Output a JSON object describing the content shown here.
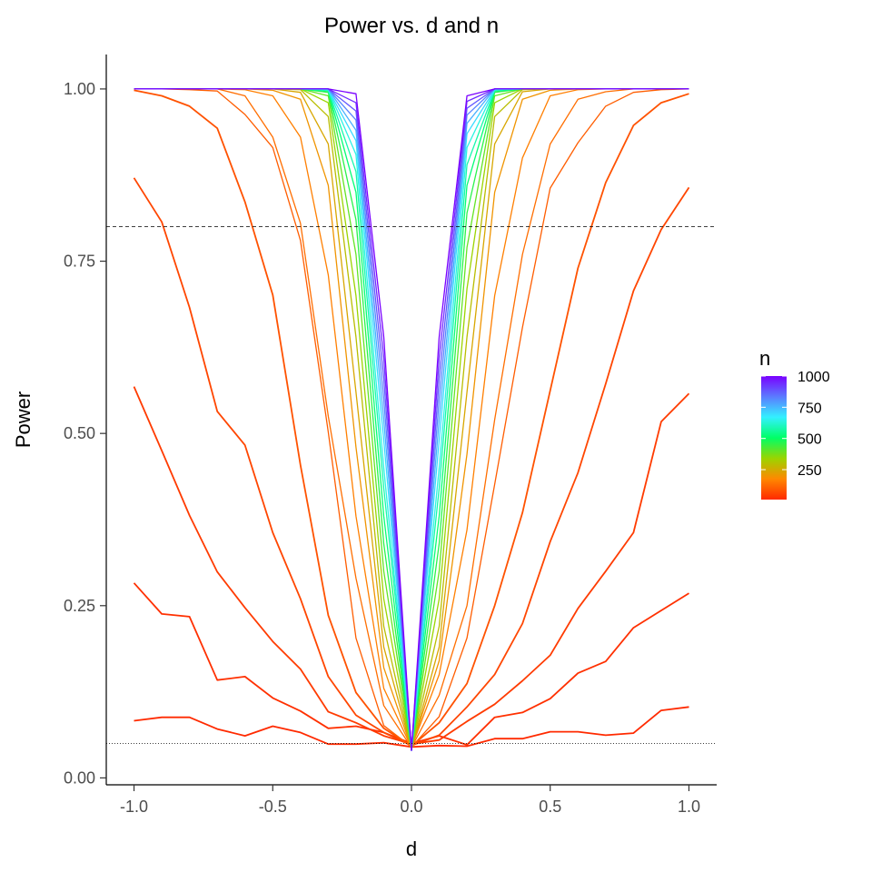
{
  "chart_data": {
    "type": "line",
    "title": "Power vs. d and n",
    "xlabel": "d",
    "ylabel": "Power",
    "xlim": [
      -1.1,
      1.1
    ],
    "ylim": [
      -0.01,
      1.05
    ],
    "x_ticks": [
      -1.0,
      -0.5,
      0.0,
      0.5,
      1.0
    ],
    "x_tick_labels": [
      "-1.0",
      "-0.5",
      "0.0",
      "0.5",
      "1.0"
    ],
    "y_ticks": [
      0.0,
      0.25,
      0.5,
      0.75,
      1.0
    ],
    "y_tick_labels": [
      "0.00",
      "0.25",
      "0.50",
      "0.75",
      "1.00"
    ],
    "grid": false,
    "reference_lines": [
      {
        "y": 0.8,
        "style": "dashed"
      },
      {
        "y": 0.05,
        "style": "dotted"
      }
    ],
    "legend": {
      "title": "n",
      "position": "right",
      "type": "colorbar",
      "range": [
        10,
        1000
      ],
      "tick_values": [
        250,
        500,
        750,
        1000
      ],
      "tick_labels": [
        "250",
        "500",
        "750",
        "1000"
      ],
      "colors": [
        "#ff2a00",
        "#ff8800",
        "#9bd400",
        "#00ff66",
        "#33f0ff",
        "#5b7bff",
        "#7a00ff"
      ]
    },
    "x": [
      -1.0,
      -0.9,
      -0.8,
      -0.7,
      -0.6,
      -0.5,
      -0.4,
      -0.3,
      -0.2,
      -0.1,
      0.0,
      0.1,
      0.2,
      0.3,
      0.4,
      0.5,
      0.6,
      0.7,
      0.8,
      0.9,
      1.0
    ],
    "series": [
      {
        "n": 10,
        "values": [
          0.083,
          0.088,
          0.088,
          0.071,
          0.061,
          0.075,
          0.066,
          0.049,
          0.049,
          0.051,
          0.045,
          0.047,
          0.046,
          0.057,
          0.057,
          0.067,
          0.067,
          0.062,
          0.065,
          0.098,
          0.103
        ]
      },
      {
        "n": 20,
        "values": [
          0.283,
          0.238,
          0.234,
          0.142,
          0.147,
          0.116,
          0.097,
          0.072,
          0.075,
          0.066,
          0.05,
          0.061,
          0.048,
          0.088,
          0.095,
          0.115,
          0.152,
          0.169,
          0.218,
          0.243,
          0.268
        ]
      },
      {
        "n": 40,
        "values": [
          0.568,
          0.475,
          0.381,
          0.299,
          0.247,
          0.198,
          0.158,
          0.096,
          0.08,
          0.061,
          0.049,
          0.055,
          0.082,
          0.107,
          0.141,
          0.178,
          0.246,
          0.3,
          0.356,
          0.517,
          0.558
        ]
      },
      {
        "n": 60,
        "values": [
          0.871,
          0.807,
          0.683,
          0.532,
          0.483,
          0.356,
          0.26,
          0.147,
          0.091,
          0.066,
          0.047,
          0.062,
          0.103,
          0.15,
          0.224,
          0.343,
          0.443,
          0.572,
          0.707,
          0.796,
          0.857
        ]
      },
      {
        "n": 80,
        "values": [
          0.998,
          0.99,
          0.975,
          0.943,
          0.836,
          0.701,
          0.454,
          0.236,
          0.124,
          0.072,
          0.046,
          0.08,
          0.137,
          0.25,
          0.385,
          0.562,
          0.74,
          0.864,
          0.947,
          0.98,
          0.993
        ]
      },
      {
        "n": 100,
        "values": [
          1.0,
          1.0,
          0.999,
          0.997,
          0.963,
          0.915,
          0.78,
          0.502,
          0.203,
          0.076,
          0.045,
          0.089,
          0.203,
          0.426,
          0.654,
          0.856,
          0.922,
          0.975,
          0.995,
          0.999,
          1.0
        ]
      },
      {
        "n": 130,
        "values": [
          1.0,
          1.0,
          1.0,
          1.0,
          0.99,
          0.93,
          0.805,
          0.525,
          0.29,
          0.105,
          0.044,
          0.12,
          0.25,
          0.52,
          0.76,
          0.92,
          0.985,
          0.996,
          1.0,
          1.0,
          1.0
        ]
      },
      {
        "n": 160,
        "values": [
          1.0,
          1.0,
          1.0,
          1.0,
          0.999,
          0.99,
          0.93,
          0.73,
          0.38,
          0.13,
          0.044,
          0.15,
          0.36,
          0.7,
          0.9,
          0.99,
          0.999,
          1.0,
          1.0,
          1.0,
          1.0
        ]
      },
      {
        "n": 200,
        "values": [
          1.0,
          1.0,
          1.0,
          1.0,
          1.0,
          0.998,
          0.985,
          0.86,
          0.48,
          0.16,
          0.043,
          0.17,
          0.47,
          0.85,
          0.985,
          0.998,
          1.0,
          1.0,
          1.0,
          1.0,
          1.0
        ]
      },
      {
        "n": 240,
        "values": [
          1.0,
          1.0,
          1.0,
          1.0,
          1.0,
          1.0,
          0.995,
          0.92,
          0.56,
          0.19,
          0.042,
          0.19,
          0.56,
          0.92,
          0.996,
          1.0,
          1.0,
          1.0,
          1.0,
          1.0,
          1.0
        ]
      },
      {
        "n": 290,
        "values": [
          1.0,
          1.0,
          1.0,
          1.0,
          1.0,
          1.0,
          0.999,
          0.96,
          0.64,
          0.22,
          0.042,
          0.22,
          0.64,
          0.96,
          0.999,
          1.0,
          1.0,
          1.0,
          1.0,
          1.0,
          1.0
        ]
      },
      {
        "n": 340,
        "values": [
          1.0,
          1.0,
          1.0,
          1.0,
          1.0,
          1.0,
          1.0,
          0.98,
          0.7,
          0.26,
          0.041,
          0.26,
          0.71,
          0.98,
          1.0,
          1.0,
          1.0,
          1.0,
          1.0,
          1.0,
          1.0
        ]
      },
      {
        "n": 400,
        "values": [
          1.0,
          1.0,
          1.0,
          1.0,
          1.0,
          1.0,
          1.0,
          0.99,
          0.76,
          0.3,
          0.041,
          0.3,
          0.77,
          0.99,
          1.0,
          1.0,
          1.0,
          1.0,
          1.0,
          1.0,
          1.0
        ]
      },
      {
        "n": 460,
        "values": [
          1.0,
          1.0,
          1.0,
          1.0,
          1.0,
          1.0,
          1.0,
          0.995,
          0.81,
          0.34,
          0.04,
          0.34,
          0.82,
          0.995,
          1.0,
          1.0,
          1.0,
          1.0,
          1.0,
          1.0,
          1.0
        ]
      },
      {
        "n": 520,
        "values": [
          1.0,
          1.0,
          1.0,
          1.0,
          1.0,
          1.0,
          1.0,
          0.997,
          0.85,
          0.38,
          0.04,
          0.38,
          0.86,
          0.997,
          1.0,
          1.0,
          1.0,
          1.0,
          1.0,
          1.0,
          1.0
        ]
      },
      {
        "n": 580,
        "values": [
          1.0,
          1.0,
          1.0,
          1.0,
          1.0,
          1.0,
          1.0,
          0.998,
          0.88,
          0.42,
          0.04,
          0.42,
          0.89,
          0.998,
          1.0,
          1.0,
          1.0,
          1.0,
          1.0,
          1.0,
          1.0
        ]
      },
      {
        "n": 640,
        "values": [
          1.0,
          1.0,
          1.0,
          1.0,
          1.0,
          1.0,
          1.0,
          0.999,
          0.905,
          0.45,
          0.04,
          0.45,
          0.915,
          0.999,
          1.0,
          1.0,
          1.0,
          1.0,
          1.0,
          1.0,
          1.0
        ]
      },
      {
        "n": 700,
        "values": [
          1.0,
          1.0,
          1.0,
          1.0,
          1.0,
          1.0,
          1.0,
          0.999,
          0.925,
          0.49,
          0.04,
          0.49,
          0.935,
          0.999,
          1.0,
          1.0,
          1.0,
          1.0,
          1.0,
          1.0,
          1.0
        ]
      },
      {
        "n": 760,
        "values": [
          1.0,
          1.0,
          1.0,
          1.0,
          1.0,
          1.0,
          1.0,
          1.0,
          0.94,
          0.52,
          0.04,
          0.52,
          0.95,
          1.0,
          1.0,
          1.0,
          1.0,
          1.0,
          1.0,
          1.0,
          1.0
        ]
      },
      {
        "n": 820,
        "values": [
          1.0,
          1.0,
          1.0,
          1.0,
          1.0,
          1.0,
          1.0,
          1.0,
          0.955,
          0.55,
          0.04,
          0.55,
          0.962,
          1.0,
          1.0,
          1.0,
          1.0,
          1.0,
          1.0,
          1.0,
          1.0
        ]
      },
      {
        "n": 880,
        "values": [
          1.0,
          1.0,
          1.0,
          1.0,
          1.0,
          1.0,
          1.0,
          1.0,
          0.968,
          0.58,
          0.04,
          0.58,
          0.972,
          1.0,
          1.0,
          1.0,
          1.0,
          1.0,
          1.0,
          1.0,
          1.0
        ]
      },
      {
        "n": 940,
        "values": [
          1.0,
          1.0,
          1.0,
          1.0,
          1.0,
          1.0,
          1.0,
          1.0,
          0.98,
          0.61,
          0.04,
          0.61,
          0.982,
          1.0,
          1.0,
          1.0,
          1.0,
          1.0,
          1.0,
          1.0,
          1.0
        ]
      },
      {
        "n": 1000,
        "values": [
          1.0,
          1.0,
          1.0,
          1.0,
          1.0,
          1.0,
          1.0,
          1.0,
          0.993,
          0.64,
          0.04,
          0.64,
          0.99,
          1.0,
          1.0,
          1.0,
          1.0,
          1.0,
          1.0,
          1.0,
          1.0
        ]
      }
    ]
  }
}
